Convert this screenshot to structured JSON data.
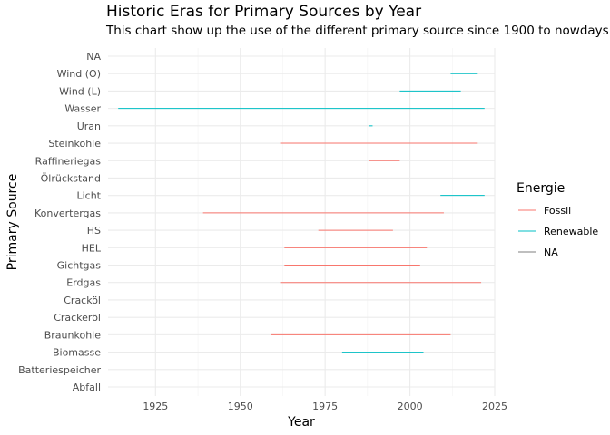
{
  "chart_data": {
    "type": "segment",
    "title": "Historic Eras for Primary Sources by Year",
    "subtitle": "This chart show up the use of the different primary source since 1900 to nowdays",
    "xlabel": "Year",
    "ylabel": "Primary Source",
    "xlim": [
      1911,
      2025
    ],
    "x_ticks": [
      "1925",
      "1950",
      "1975",
      "2000",
      "2025"
    ],
    "x_tick_values": [
      1925,
      1950,
      1975,
      2000,
      2025
    ],
    "grid": true,
    "legend": {
      "title": "Energie",
      "position": "right",
      "entries": [
        {
          "label": "Fossil",
          "color": "#F8766D"
        },
        {
          "label": "Renewable",
          "color": "#00BFC4"
        },
        {
          "label": "NA",
          "color": "#7F7F7F"
        }
      ]
    },
    "categories": [
      "Abfall",
      "Batteriespeicher",
      "Biomasse",
      "Braunkohle",
      "Crackeröl",
      "Cracköl",
      "Erdgas",
      "Gichtgas",
      "HEL",
      "HS",
      "Konvertergas",
      "Licht",
      "Ölrückstand",
      "Raffineriegas",
      "Steinkohle",
      "Uran",
      "Wasser",
      "Wind (L)",
      "Wind (O)",
      "NA"
    ],
    "segments": [
      {
        "source": "Abfall",
        "energie": null,
        "start": null,
        "end": null
      },
      {
        "source": "Batteriespeicher",
        "energie": null,
        "start": null,
        "end": null
      },
      {
        "source": "Biomasse",
        "energie": "Renewable",
        "start": 1980,
        "end": 2004
      },
      {
        "source": "Braunkohle",
        "energie": "Fossil",
        "start": 1959,
        "end": 2012
      },
      {
        "source": "Crackeröl",
        "energie": null,
        "start": null,
        "end": null
      },
      {
        "source": "Cracköl",
        "energie": null,
        "start": null,
        "end": null
      },
      {
        "source": "Erdgas",
        "energie": "Fossil",
        "start": 1962,
        "end": 2021
      },
      {
        "source": "Gichtgas",
        "energie": "Fossil",
        "start": 1963,
        "end": 2003
      },
      {
        "source": "HEL",
        "energie": "Fossil",
        "start": 1963,
        "end": 2005
      },
      {
        "source": "HS",
        "energie": "Fossil",
        "start": 1973,
        "end": 1995
      },
      {
        "source": "Konvertergas",
        "energie": "Fossil",
        "start": 1939,
        "end": 2010
      },
      {
        "source": "Licht",
        "energie": "Renewable",
        "start": 2009,
        "end": 2022
      },
      {
        "source": "Ölrückstand",
        "energie": null,
        "start": null,
        "end": null
      },
      {
        "source": "Raffineriegas",
        "energie": "Fossil",
        "start": 1988,
        "end": 1997
      },
      {
        "source": "Steinkohle",
        "energie": "Fossil",
        "start": 1962,
        "end": 2020
      },
      {
        "source": "Uran",
        "energie": "Renewable",
        "start": 1988,
        "end": 1989
      },
      {
        "source": "Wasser",
        "energie": "Renewable",
        "start": 1914,
        "end": 2022
      },
      {
        "source": "Wind (L)",
        "energie": "Renewable",
        "start": 1997,
        "end": 2015
      },
      {
        "source": "Wind (O)",
        "energie": "Renewable",
        "start": 2012,
        "end": 2020
      },
      {
        "source": "NA",
        "energie": null,
        "start": null,
        "end": null
      }
    ]
  }
}
